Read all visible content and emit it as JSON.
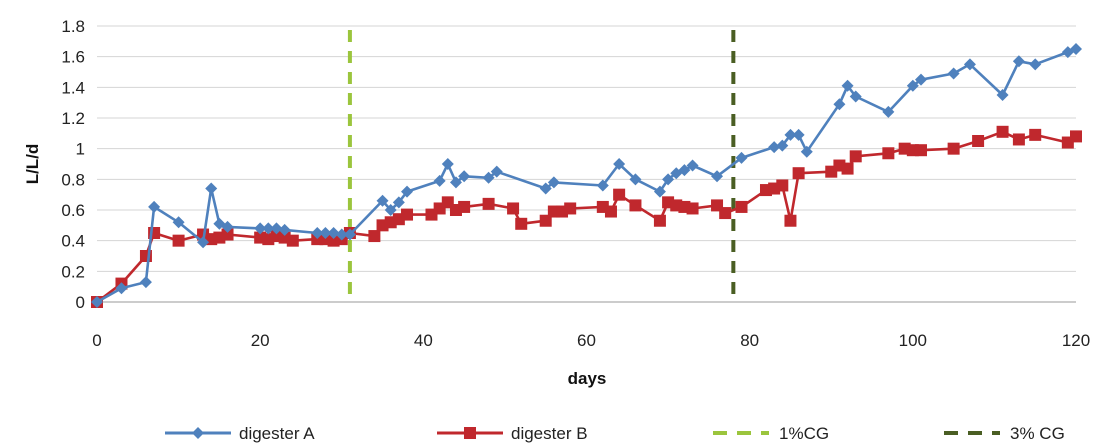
{
  "chart_data": {
    "type": "line",
    "xlabel": "days",
    "ylabel": "L/L/d",
    "xlim": [
      0,
      120
    ],
    "ylim": [
      0,
      1.8
    ],
    "x_ticks": [
      "0",
      "20",
      "40",
      "60",
      "80",
      "100",
      "120"
    ],
    "y_ticks": [
      "0",
      "0.2",
      "0.4",
      "0.6",
      "0.8",
      "1",
      "1.2",
      "1.4",
      "1.6",
      "1.8"
    ],
    "grid": "horizontal",
    "legend_position": "bottom",
    "series": [
      {
        "name": "digester A",
        "color": "#4f81bd",
        "marker": "diamond",
        "x": [
          0,
          3,
          6,
          7,
          10,
          13,
          14,
          15,
          16,
          20,
          21,
          22,
          23,
          27,
          28,
          29,
          30,
          31,
          35,
          36,
          37,
          38,
          42,
          43,
          44,
          45,
          48,
          49,
          55,
          56,
          62,
          64,
          66,
          69,
          70,
          71,
          72,
          73,
          76,
          79,
          83,
          84,
          85,
          86,
          87,
          91,
          92,
          93,
          97,
          100,
          101,
          105,
          107,
          111,
          113,
          115,
          119,
          120
        ],
        "y": [
          0,
          0.09,
          0.13,
          0.62,
          0.52,
          0.39,
          0.74,
          0.51,
          0.49,
          0.48,
          0.48,
          0.48,
          0.47,
          0.45,
          0.45,
          0.45,
          0.44,
          0.44,
          0.66,
          0.6,
          0.65,
          0.72,
          0.79,
          0.9,
          0.78,
          0.82,
          0.81,
          0.85,
          0.74,
          0.78,
          0.76,
          0.9,
          0.8,
          0.72,
          0.8,
          0.84,
          0.86,
          0.89,
          0.82,
          0.94,
          1.01,
          1.02,
          1.09,
          1.09,
          0.98,
          1.29,
          1.41,
          1.34,
          1.24,
          1.41,
          1.45,
          1.49,
          1.55,
          1.35,
          1.57,
          1.55,
          1.63,
          1.65
        ]
      },
      {
        "name": "digester B",
        "color": "#c0282d",
        "marker": "square",
        "x": [
          0,
          3,
          6,
          7,
          10,
          13,
          14,
          15,
          16,
          20,
          21,
          22,
          23,
          24,
          27,
          28,
          29,
          30,
          31,
          34,
          35,
          36,
          37,
          38,
          41,
          42,
          43,
          44,
          45,
          48,
          51,
          52,
          55,
          56,
          57,
          58,
          62,
          63,
          64,
          66,
          69,
          70,
          71,
          72,
          73,
          76,
          77,
          79,
          82,
          83,
          84,
          85,
          86,
          90,
          91,
          92,
          93,
          97,
          99,
          100,
          101,
          105,
          108,
          111,
          113,
          115,
          119,
          120
        ],
        "y": [
          0,
          0.12,
          0.3,
          0.45,
          0.4,
          0.44,
          0.41,
          0.42,
          0.44,
          0.42,
          0.41,
          0.43,
          0.42,
          0.4,
          0.41,
          0.41,
          0.4,
          0.41,
          0.45,
          0.43,
          0.5,
          0.52,
          0.54,
          0.57,
          0.57,
          0.61,
          0.65,
          0.6,
          0.62,
          0.64,
          0.61,
          0.51,
          0.53,
          0.59,
          0.59,
          0.61,
          0.62,
          0.59,
          0.7,
          0.63,
          0.53,
          0.65,
          0.63,
          0.62,
          0.61,
          0.63,
          0.58,
          0.62,
          0.73,
          0.74,
          0.76,
          0.53,
          0.84,
          0.85,
          0.89,
          0.87,
          0.95,
          0.97,
          1.0,
          0.99,
          0.99,
          1.0,
          1.05,
          1.11,
          1.06,
          1.09,
          1.04,
          1.08
        ]
      }
    ],
    "vlines": [
      {
        "name": "1%CG",
        "x": 31,
        "color": "#9bc53d",
        "dash": "dashed"
      },
      {
        "name": "3% CG",
        "x": 78,
        "color": "#4a5e23",
        "dash": "dashed"
      }
    ]
  }
}
